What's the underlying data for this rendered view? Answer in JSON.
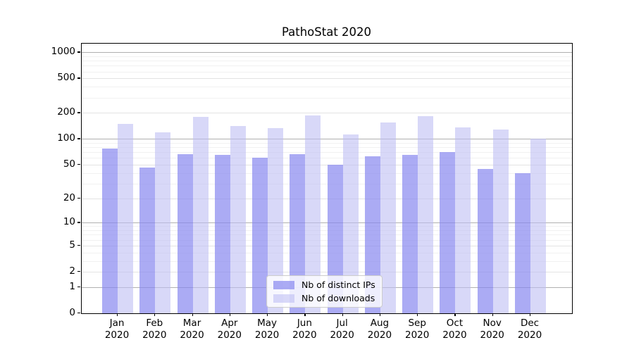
{
  "chart_data": {
    "type": "bar",
    "title": "PathoStat 2020",
    "categories": [
      "Jan",
      "Feb",
      "Mar",
      "Apr",
      "May",
      "Jun",
      "Jul",
      "Aug",
      "Sep",
      "Oct",
      "Nov",
      "Dec"
    ],
    "year_suffix": "2020",
    "series": [
      {
        "name": "Nb of distinct IPs",
        "color": "rgba(136,136,240,0.70)",
        "values": [
          78,
          46,
          66,
          65,
          60,
          66,
          50,
          63,
          65,
          70,
          45,
          40
        ]
      },
      {
        "name": "Nb of downloads",
        "color": "rgba(190,190,243,0.60)",
        "values": [
          150,
          120,
          180,
          140,
          134,
          186,
          112,
          156,
          183,
          135,
          128,
          100
        ]
      }
    ],
    "y_axis": {
      "scale": "log1p",
      "ticks": [
        0,
        1,
        2,
        5,
        10,
        20,
        50,
        100,
        200,
        500,
        1000
      ],
      "max": 1259
    },
    "grid": true,
    "legend": {
      "position": "lower center"
    },
    "colors": {
      "major_grid": "#b0b0b0",
      "mid_grid": "#e3e3e3",
      "minor_grid": "#f1f1f1",
      "spine": "#000000"
    }
  }
}
